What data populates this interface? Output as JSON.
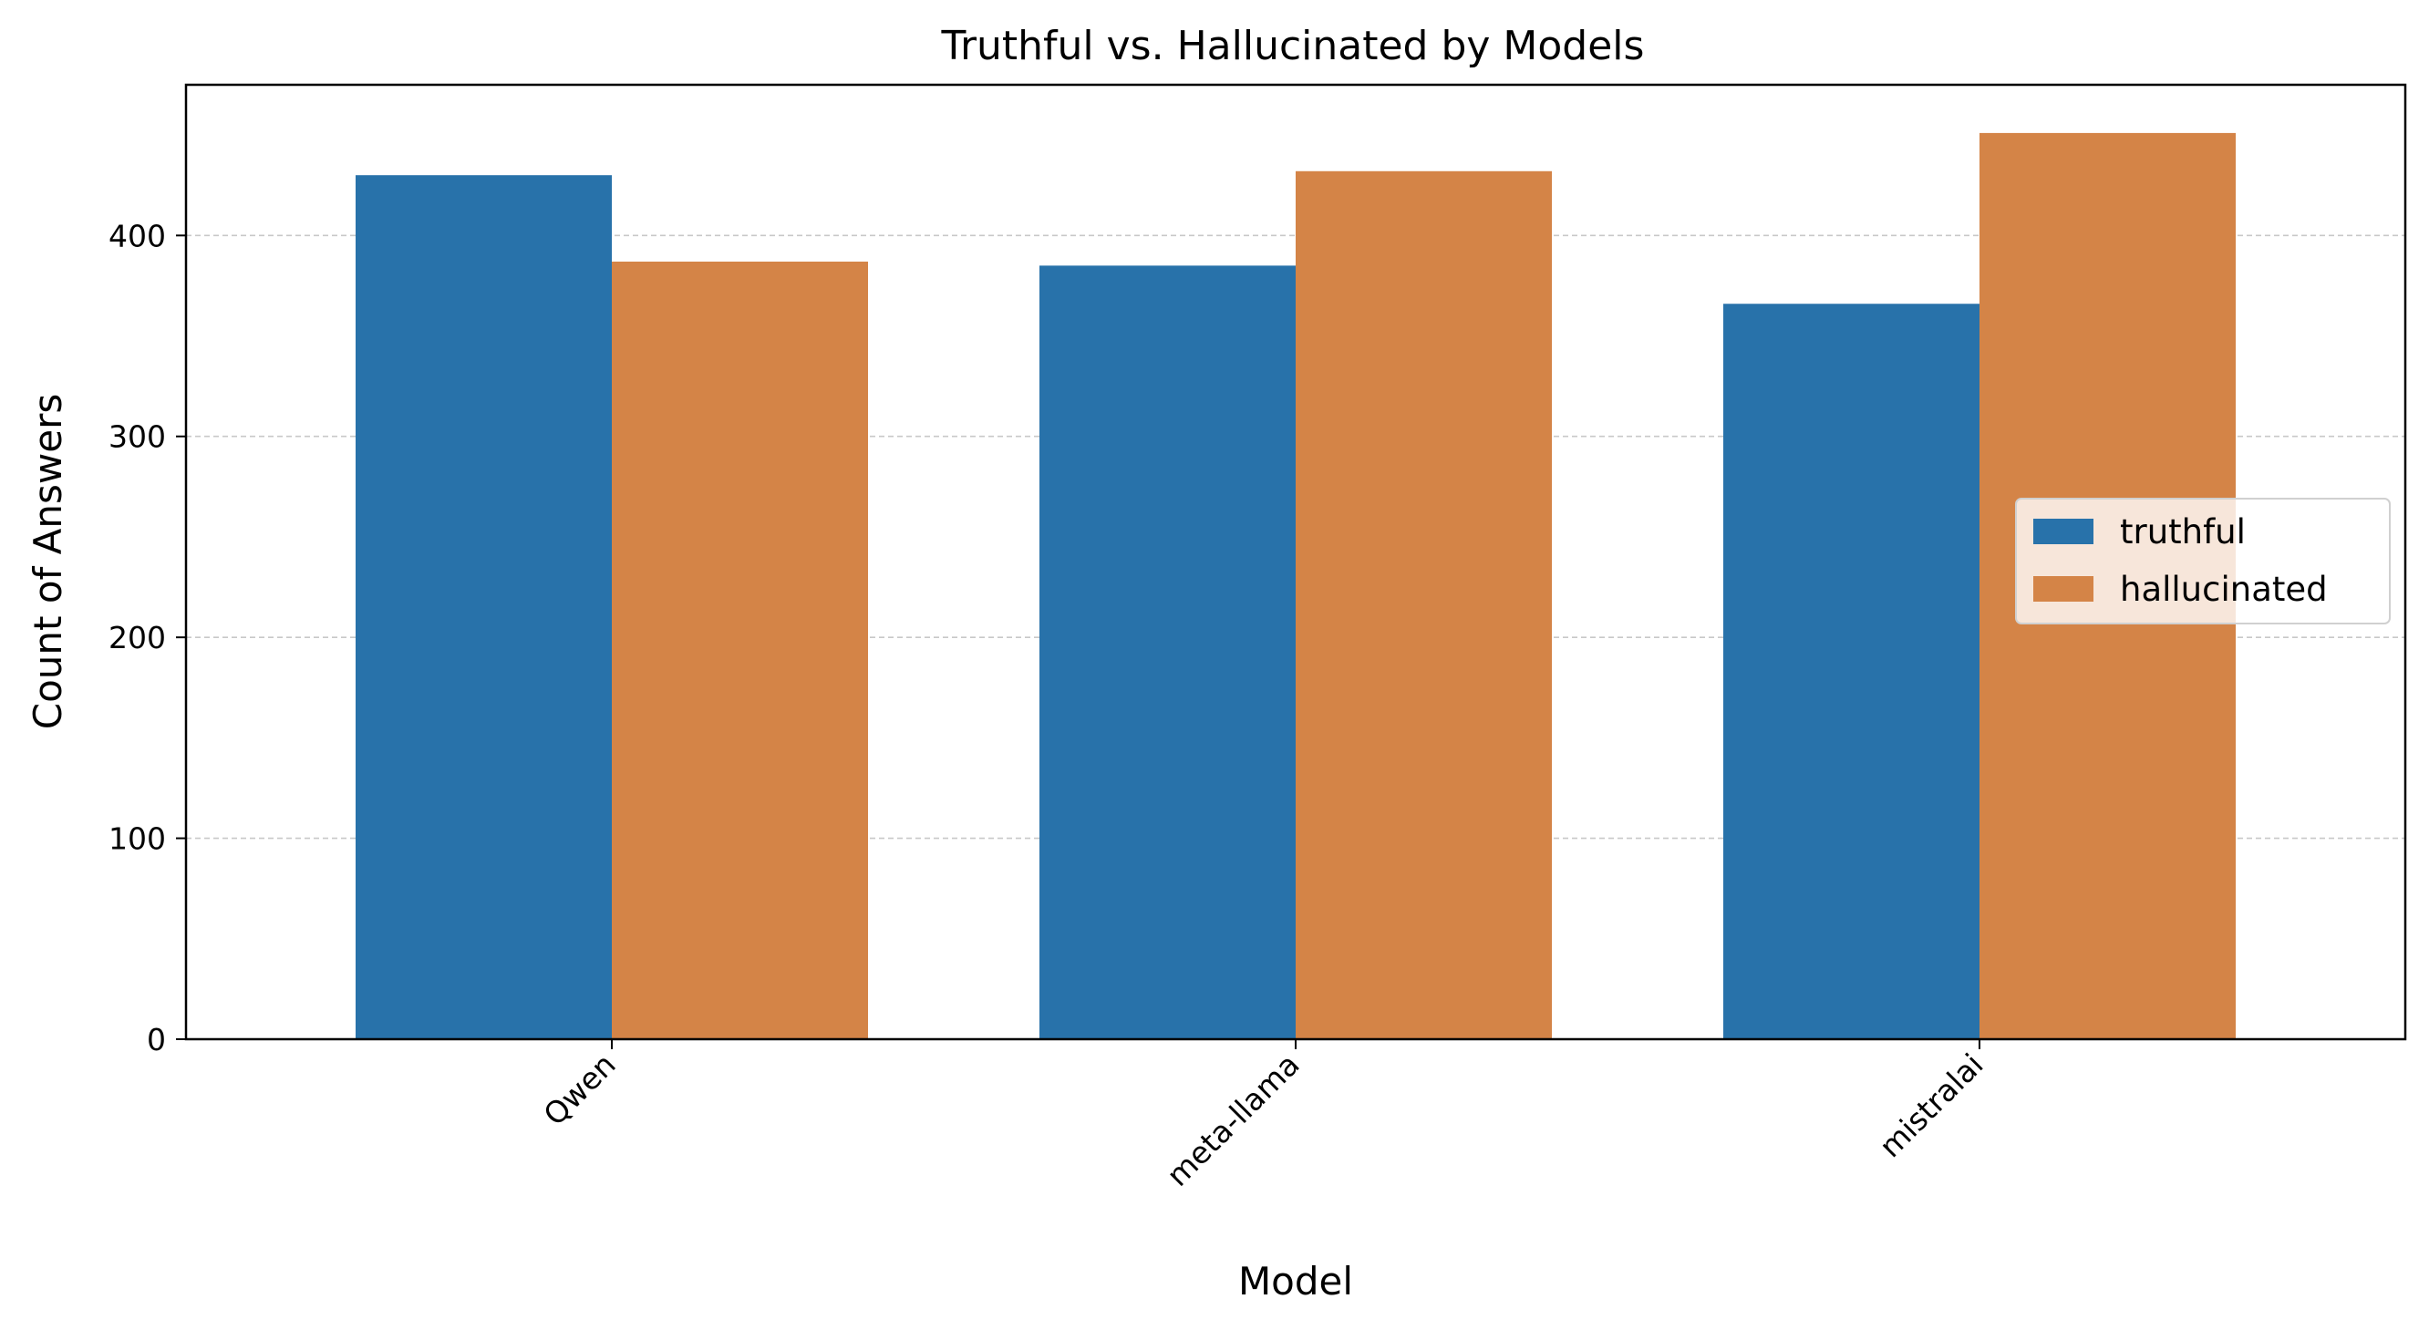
{
  "chart_data": {
    "type": "bar",
    "title": "Truthful vs. Hallucinated by Models",
    "xlabel": "Model",
    "ylabel": "Count of Answers",
    "categories": [
      "Qwen",
      "meta-llama",
      "mistralai"
    ],
    "series": [
      {
        "name": "truthful",
        "values": [
          430,
          385,
          366
        ],
        "color": "#2872aa"
      },
      {
        "name": "hallucinated",
        "values": [
          387,
          432,
          451
        ],
        "color": "#d48447"
      }
    ],
    "ylim": [
      0,
      475
    ],
    "yticks": [
      0,
      100,
      200,
      300,
      400
    ],
    "grid": "horizontal dashed",
    "legend_position": "center-right"
  }
}
